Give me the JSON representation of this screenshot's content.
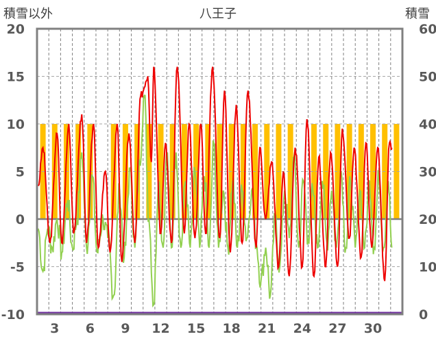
{
  "chart_data": {
    "type": "line",
    "title": "八王子",
    "left_axis_label": "積雪以外",
    "right_axis_label": "積雪",
    "left_range": [
      -10,
      20
    ],
    "right_range": [
      0,
      60
    ],
    "left_ticks": [
      "20",
      "15",
      "10",
      "5",
      "0",
      "-5",
      "-10"
    ],
    "right_ticks": [
      "60",
      "50",
      "40",
      "30",
      "20",
      "10",
      "0"
    ],
    "x_range": [
      1,
      32
    ],
    "x_tick_labels": [
      "3",
      "6",
      "9",
      "12",
      "15",
      "18",
      "21",
      "24",
      "27",
      "30"
    ],
    "grid": true,
    "colors": {
      "red": "#ee0000",
      "green": "#92d050",
      "bars": "#ffc000",
      "snow": "#7030a0",
      "frame": "#808080"
    },
    "bar_value": 10,
    "bar_days": [
      1,
      2,
      3,
      4,
      5,
      7,
      8,
      9,
      10,
      11,
      12,
      13,
      14,
      15,
      16,
      17,
      18,
      19,
      20,
      21,
      22,
      24,
      25,
      26,
      27,
      28,
      29,
      30,
      31
    ],
    "red_peaks": [
      [
        1.1,
        3.5
      ],
      [
        1.5,
        7.5
      ],
      [
        2.1,
        -2.5
      ],
      [
        2.7,
        9.0
      ],
      [
        3.1,
        -2.5
      ],
      [
        3.7,
        10.0
      ],
      [
        4.1,
        -1.5
      ],
      [
        4.8,
        11.0
      ],
      [
        5.2,
        -2.5
      ],
      [
        5.8,
        10.0
      ],
      [
        6.2,
        -3.0
      ],
      [
        6.8,
        5.0
      ],
      [
        7.2,
        -3.5
      ],
      [
        7.8,
        10.0
      ],
      [
        8.2,
        -4.5
      ],
      [
        8.8,
        9.0
      ],
      [
        9.3,
        -2.5
      ],
      [
        9.8,
        13.0
      ],
      [
        10.4,
        15.0
      ],
      [
        10.7,
        6.0
      ],
      [
        10.9,
        16.0
      ],
      [
        11.5,
        -1.5
      ],
      [
        11.9,
        8.0
      ],
      [
        12.4,
        -2.5
      ],
      [
        12.9,
        16.0
      ],
      [
        13.5,
        -1.5
      ],
      [
        13.9,
        10.0
      ],
      [
        14.4,
        -2.0
      ],
      [
        14.9,
        10.0
      ],
      [
        15.3,
        -1.5
      ],
      [
        15.9,
        16.0
      ],
      [
        16.5,
        -2.0
      ],
      [
        16.9,
        13.5
      ],
      [
        17.4,
        -3.5
      ],
      [
        17.9,
        12.0
      ],
      [
        18.4,
        -2.5
      ],
      [
        18.9,
        13.5
      ],
      [
        19.6,
        -3.0
      ],
      [
        19.9,
        7.5
      ],
      [
        20.4,
        0.0
      ],
      [
        20.9,
        6.0
      ],
      [
        21.5,
        -5.0
      ],
      [
        21.9,
        5.0
      ],
      [
        22.4,
        -6.0
      ],
      [
        22.9,
        7.5
      ],
      [
        23.5,
        -5.0
      ],
      [
        23.9,
        10.5
      ],
      [
        24.5,
        -6.0
      ],
      [
        24.9,
        6.5
      ],
      [
        25.5,
        -5.0
      ],
      [
        25.9,
        7.0
      ],
      [
        26.5,
        -5.0
      ],
      [
        26.9,
        9.5
      ],
      [
        27.5,
        -2.0
      ],
      [
        27.9,
        7.5
      ],
      [
        28.5,
        -4.0
      ],
      [
        28.9,
        8.0
      ],
      [
        29.4,
        -3.0
      ],
      [
        29.9,
        7.5
      ],
      [
        30.5,
        -6.5
      ],
      [
        30.9,
        8.0
      ],
      [
        31.1,
        7.5
      ]
    ],
    "green_peaks": [
      [
        1.1,
        -1.0
      ],
      [
        1.5,
        -5.5
      ],
      [
        1.9,
        -1.0
      ],
      [
        2.3,
        -3.0
      ],
      [
        2.7,
        0.0
      ],
      [
        3.1,
        -3.5
      ],
      [
        3.6,
        2.0
      ],
      [
        4.0,
        -3.0
      ],
      [
        4.4,
        0.0
      ],
      [
        4.8,
        7.0
      ],
      [
        5.2,
        -3.0
      ],
      [
        5.7,
        4.5
      ],
      [
        6.1,
        -3.5
      ],
      [
        6.6,
        0.0
      ],
      [
        7.0,
        -2.0
      ],
      [
        7.5,
        -8.0
      ],
      [
        8.0,
        3.0
      ],
      [
        8.4,
        -4.0
      ],
      [
        8.9,
        5.0
      ],
      [
        9.3,
        -3.0
      ],
      [
        9.7,
        6.0
      ],
      [
        10.1,
        13.0
      ],
      [
        10.5,
        0.0
      ],
      [
        10.9,
        -9.0
      ],
      [
        11.3,
        4.0
      ],
      [
        11.7,
        -3.0
      ],
      [
        12.0,
        7.0
      ],
      [
        12.4,
        -3.0
      ],
      [
        12.8,
        7.0
      ],
      [
        13.2,
        -3.0
      ],
      [
        13.6,
        4.0
      ],
      [
        14.0,
        -3.0
      ],
      [
        14.4,
        5.0
      ],
      [
        14.8,
        -3.0
      ],
      [
        15.2,
        4.5
      ],
      [
        15.6,
        -3.0
      ],
      [
        16.0,
        8.0
      ],
      [
        16.4,
        -3.0
      ],
      [
        16.8,
        3.0
      ],
      [
        17.2,
        -3.0
      ],
      [
        17.6,
        4.0
      ],
      [
        18.0,
        -3.0
      ],
      [
        18.4,
        3.0
      ],
      [
        18.8,
        -2.0
      ],
      [
        19.2,
        3.0
      ],
      [
        19.6,
        -2.5
      ],
      [
        20.0,
        -6.5
      ],
      [
        20.4,
        -3.0
      ],
      [
        20.8,
        -8.0
      ],
      [
        21.2,
        0.0
      ],
      [
        21.6,
        -5.0
      ],
      [
        22.0,
        3.0
      ],
      [
        22.4,
        -2.0
      ],
      [
        22.8,
        6.5
      ],
      [
        23.2,
        -3.0
      ],
      [
        23.6,
        4.0
      ],
      [
        24.0,
        -2.0
      ],
      [
        24.4,
        3.0
      ],
      [
        24.8,
        -3.0
      ],
      [
        25.2,
        4.0
      ],
      [
        25.6,
        -2.5
      ],
      [
        26.0,
        3.0
      ],
      [
        26.4,
        -3.0
      ],
      [
        26.8,
        5.0
      ],
      [
        27.2,
        -3.0
      ],
      [
        27.6,
        4.0
      ],
      [
        28.0,
        -3.0
      ],
      [
        28.4,
        3.0
      ],
      [
        28.8,
        -3.0
      ],
      [
        29.2,
        4.0
      ],
      [
        29.6,
        -3.0
      ],
      [
        30.0,
        4.5
      ],
      [
        30.4,
        -3.0
      ],
      [
        30.8,
        4.0
      ],
      [
        31.1,
        -3.0
      ]
    ],
    "snow_values": [
      [
        1,
        0
      ],
      [
        32,
        0
      ]
    ]
  }
}
